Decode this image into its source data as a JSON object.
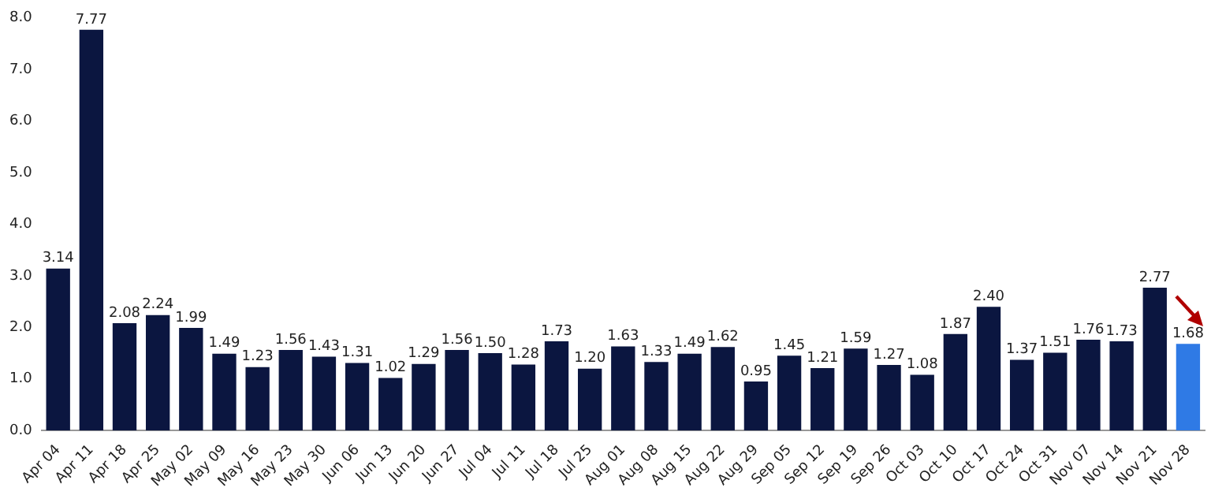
{
  "chart_data": {
    "type": "bar",
    "categories": [
      "Apr 04",
      "Apr 11",
      "Apr 18",
      "Apr 25",
      "May 02",
      "May 09",
      "May 16",
      "May 23",
      "May 30",
      "Jun 06",
      "Jun 13",
      "Jun 20",
      "Jun 27",
      "Jul 04",
      "Jul 11",
      "Jul 18",
      "Jul 25",
      "Aug 01",
      "Aug 08",
      "Aug 15",
      "Aug 22",
      "Aug 29",
      "Sep 05",
      "Sep 12",
      "Sep 19",
      "Sep 26",
      "Oct 03",
      "Oct 10",
      "Oct 17",
      "Oct 24",
      "Oct 31",
      "Nov 07",
      "Nov 14",
      "Nov 21",
      "Nov 28"
    ],
    "values": [
      3.14,
      7.77,
      2.08,
      2.24,
      1.99,
      1.49,
      1.23,
      1.56,
      1.43,
      1.31,
      1.02,
      1.29,
      1.56,
      1.5,
      1.28,
      1.73,
      1.2,
      1.63,
      1.33,
      1.49,
      1.62,
      0.95,
      1.45,
      1.21,
      1.59,
      1.27,
      1.08,
      1.87,
      2.4,
      1.37,
      1.51,
      1.76,
      1.73,
      2.77,
      1.68
    ],
    "value_labels": [
      "3.14",
      "7.77",
      "2.08",
      "2.24",
      "1.99",
      "1.49",
      "1.23",
      "1.56",
      "1.43",
      "1.31",
      "1.02",
      "1.29",
      "1.56",
      "1.50",
      "1.28",
      "1.73",
      "1.20",
      "1.63",
      "1.33",
      "1.49",
      "1.62",
      "0.95",
      "1.45",
      "1.21",
      "1.59",
      "1.27",
      "1.08",
      "1.87",
      "2.40",
      "1.37",
      "1.51",
      "1.76",
      "1.73",
      "2.77",
      "1.68"
    ],
    "colors": [
      "#0b1640",
      "#0b1640",
      "#0b1640",
      "#0b1640",
      "#0b1640",
      "#0b1640",
      "#0b1640",
      "#0b1640",
      "#0b1640",
      "#0b1640",
      "#0b1640",
      "#0b1640",
      "#0b1640",
      "#0b1640",
      "#0b1640",
      "#0b1640",
      "#0b1640",
      "#0b1640",
      "#0b1640",
      "#0b1640",
      "#0b1640",
      "#0b1640",
      "#0b1640",
      "#0b1640",
      "#0b1640",
      "#0b1640",
      "#0b1640",
      "#0b1640",
      "#0b1640",
      "#0b1640",
      "#0b1640",
      "#0b1640",
      "#0b1640",
      "#0b1640",
      "#2f7ae5"
    ],
    "ylim": [
      0,
      8
    ],
    "yticks": [
      {
        "value": 0,
        "label": "0.0"
      },
      {
        "value": 1,
        "label": "1.0"
      },
      {
        "value": 2,
        "label": "2.0"
      },
      {
        "value": 3,
        "label": "3.0"
      },
      {
        "value": 4,
        "label": "4.0"
      },
      {
        "value": 5,
        "label": "5.0"
      },
      {
        "value": 6,
        "label": "6.0"
      },
      {
        "value": 7,
        "label": "7.0"
      },
      {
        "value": 8,
        "label": "8.0"
      }
    ],
    "grid": false,
    "legend": false
  }
}
